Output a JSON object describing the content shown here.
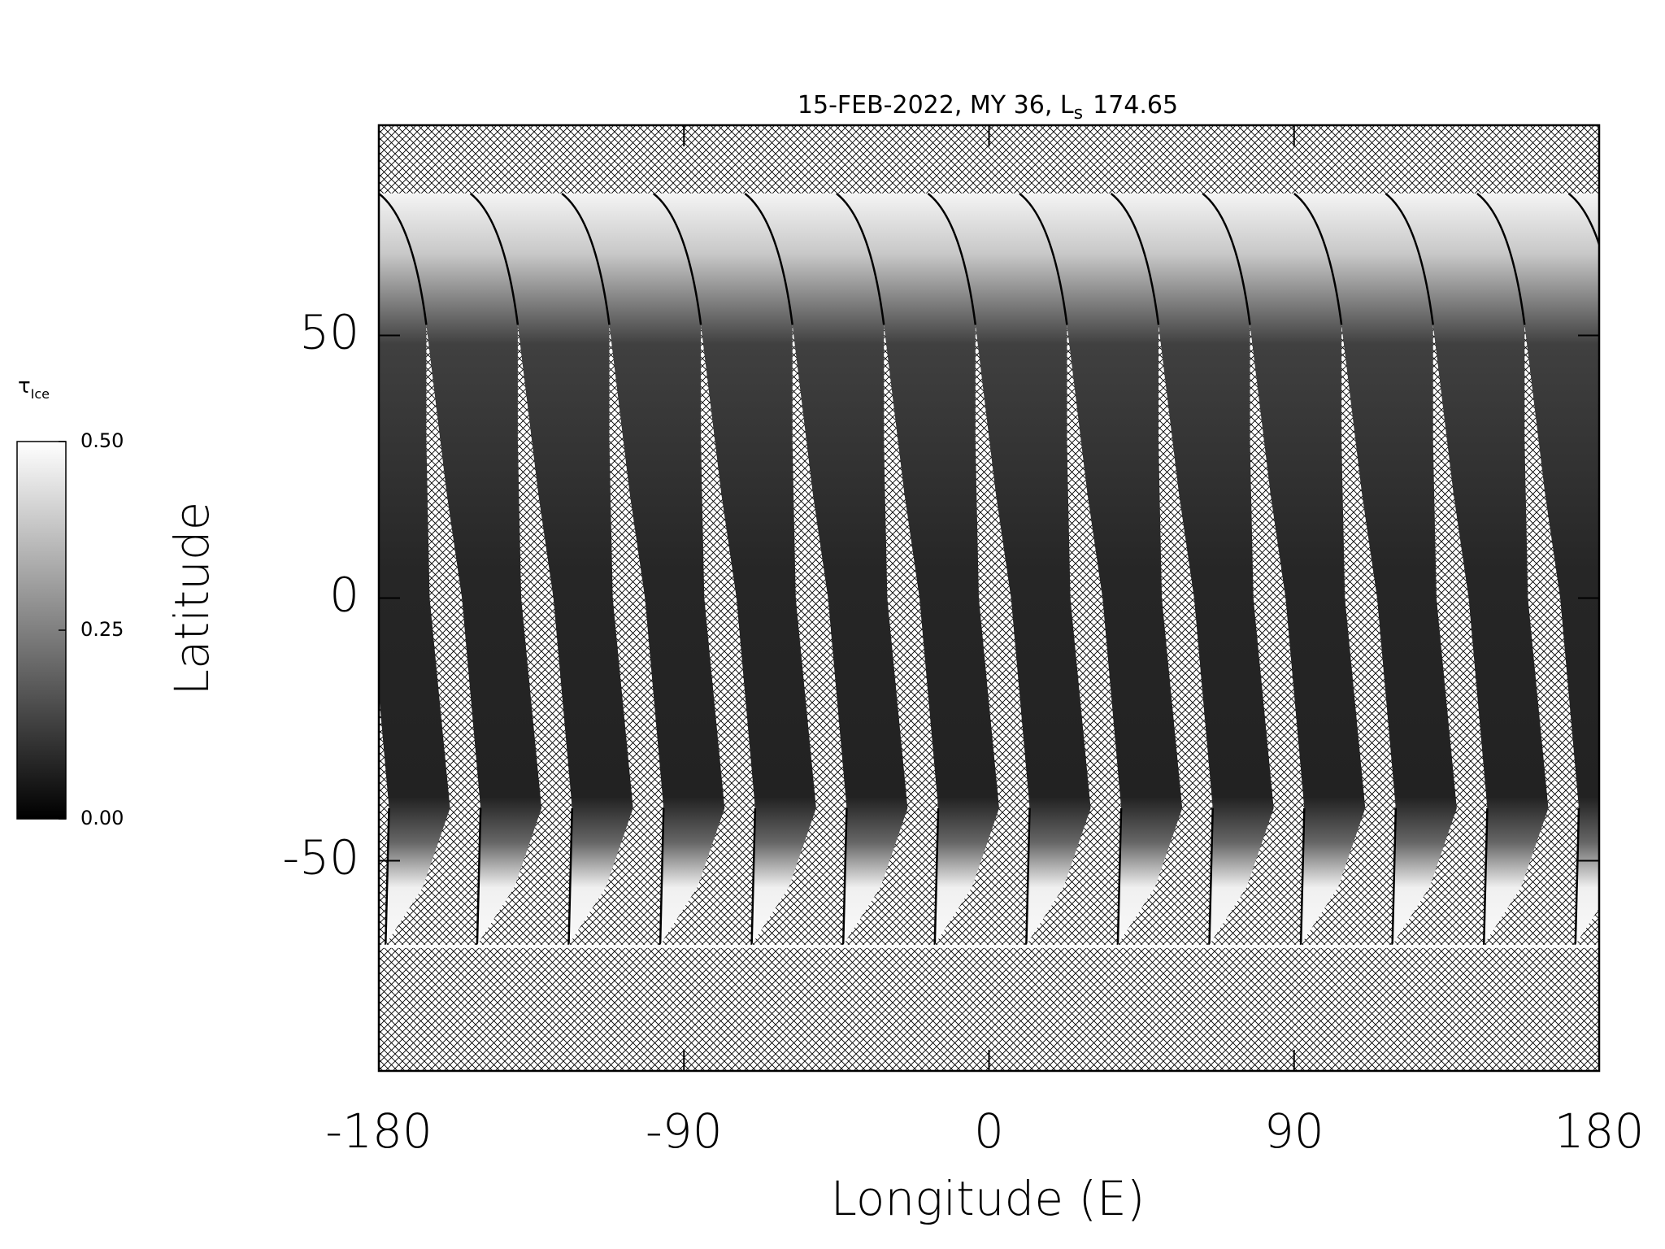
{
  "chart_data": {
    "type": "map",
    "title": "15-FEB-2022, MY 36,  L",
    "title_subscript": "s",
    "title_value": "174.65",
    "xlabel": "Longitude (E)",
    "ylabel": "Latitude",
    "xlim": [
      -180,
      180
    ],
    "ylim": [
      -90,
      90
    ],
    "xticks": [
      -180,
      -90,
      0,
      90,
      180
    ],
    "yticks": [
      -50,
      0,
      50
    ],
    "colorbar": {
      "label": "τ",
      "label_subscript": "Ice",
      "lim": [
        0,
        0.5
      ],
      "ticks": [
        {
          "value": 0,
          "label": "0.00"
        },
        {
          "value": 0.25,
          "label": "0.25"
        },
        {
          "value": 0.5,
          "label": "0.50"
        }
      ]
    }
  }
}
